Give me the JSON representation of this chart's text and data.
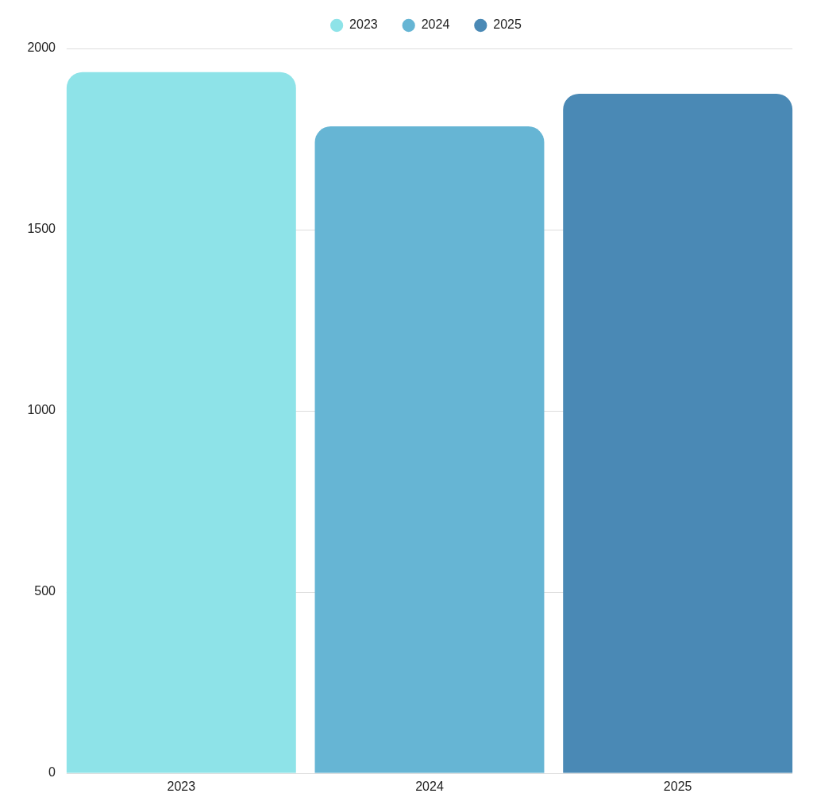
{
  "chart_data": {
    "type": "bar",
    "categories": [
      "2023",
      "2024",
      "2025"
    ],
    "series": [
      {
        "name": "2023",
        "color": "#8ee3e8",
        "values": [
          1935,
          null,
          null
        ]
      },
      {
        "name": "2024",
        "color": "#66b5d4",
        "values": [
          null,
          1785,
          null
        ]
      },
      {
        "name": "2025",
        "color": "#4a89b5",
        "values": [
          null,
          null,
          1875
        ]
      }
    ],
    "ylim": [
      0,
      2000
    ],
    "yticks": [
      0,
      500,
      1000,
      1500,
      2000
    ],
    "grid": "y",
    "legend": "top"
  }
}
